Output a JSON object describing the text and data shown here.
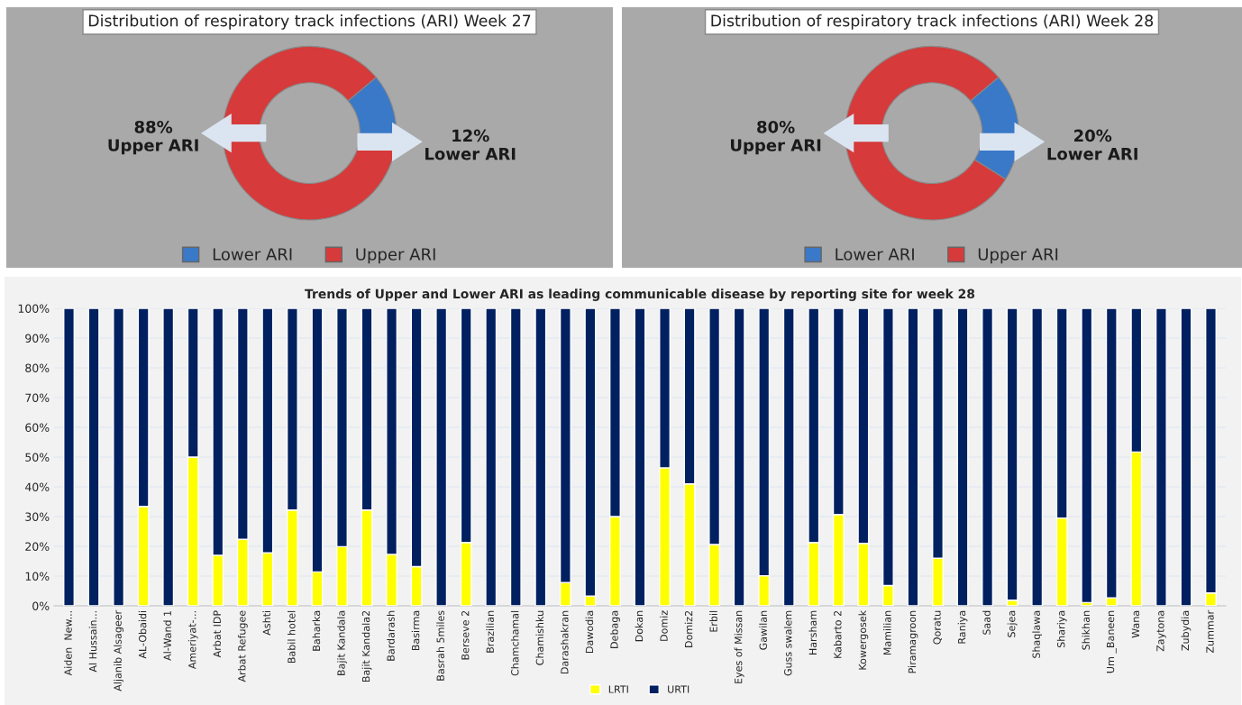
{
  "chart_data": [
    {
      "type": "donut",
      "title": "Distribution of respiratory track infections (ARI) Week 27",
      "categories": [
        "Lower ARI",
        "Upper ARI"
      ],
      "values": [
        12,
        88
      ],
      "colors": [
        "#3a78c8",
        "#d63a3a"
      ],
      "value_labels": [
        "12%",
        "88%"
      ],
      "legend": "bottom"
    },
    {
      "type": "donut",
      "title": "Distribution of respiratory track infections (ARI) Week 28",
      "categories": [
        "Lower ARI",
        "Upper ARI"
      ],
      "values": [
        20,
        80
      ],
      "colors": [
        "#3a78c8",
        "#d63a3a"
      ],
      "value_labels": [
        "20%",
        "80%"
      ],
      "legend": "bottom"
    },
    {
      "type": "bar",
      "title": "Trends of Upper and Lower ARI as leading communicable disease by reporting site for week 28",
      "stacked": true,
      "grid": "y",
      "legend": "bottom",
      "categories": [
        "Aiden  New...",
        "Al Hussain...",
        "Aljanib Alsageer",
        "AL-Obaidi",
        "Al-Wand 1",
        "Ameriyat-...",
        "Arbat IDP",
        "Arbat Refugee",
        "Ashti",
        "Babil hotel",
        "Baharka",
        "Bajit Kandala",
        "Bajit Kandala2",
        "Bardarash",
        "Basirma",
        "Basrah 5miles",
        "Berseve 2",
        "Brazilian",
        "Chamchamal",
        "Chamishku",
        "Darashakran",
        "Dawodia",
        "Debaga",
        "Dokan",
        "Domiz",
        "Domiz2",
        "Erbil",
        "Eyes of Missan",
        "Gawilan",
        "Guss swalem",
        "Harsham",
        "Kabarto 2",
        "Kowergosek",
        "Mamilian",
        "Piramagroon",
        "Qoratu",
        "Raniya",
        "Saad",
        "Sejea",
        "Shaqlawa",
        "Shariya",
        "Shikhan",
        "Um _Baneen",
        "Wana",
        "Zaytona",
        "Zubydia",
        "Zummar"
      ],
      "series": [
        {
          "name": "LRTI",
          "color": "#ffff00",
          "values": [
            0,
            0,
            0,
            33.4,
            0,
            50,
            17,
            22.4,
            17.8,
            32.2,
            11.4,
            19.9,
            32.2,
            17.3,
            13.2,
            0,
            21.3,
            0,
            0,
            0,
            7.8,
            3.3,
            30,
            0,
            46.4,
            41,
            20.6,
            0,
            10.1,
            0,
            21.3,
            30.7,
            21,
            6.8,
            0,
            16,
            0,
            0,
            1.9,
            0,
            29.5,
            1.1,
            2.7,
            51.7,
            0,
            0,
            4.3
          ]
        },
        {
          "name": "URTI",
          "color": "#002060",
          "values": [
            100,
            100,
            100,
            66.6,
            100,
            50,
            83,
            77.6,
            82.2,
            67.8,
            88.6,
            80.1,
            67.8,
            82.7,
            86.8,
            100,
            78.7,
            100,
            100,
            100,
            92.2,
            96.7,
            70,
            100,
            53.6,
            59,
            79.4,
            100,
            89.9,
            100,
            78.7,
            69.3,
            79,
            93.2,
            100,
            84,
            100,
            100,
            98.1,
            100,
            70.5,
            98.9,
            97.3,
            48.3,
            100,
            100,
            95.7
          ]
        }
      ],
      "ylim": [
        0,
        100
      ],
      "yticks": [
        {
          "value": 0,
          "label": "0%"
        },
        {
          "value": 10,
          "label": "10%"
        },
        {
          "value": 20,
          "label": "20%"
        },
        {
          "value": 30,
          "label": "30%"
        },
        {
          "value": 40,
          "label": "40%"
        },
        {
          "value": 50,
          "label": "50%"
        },
        {
          "value": 60,
          "label": "60%"
        },
        {
          "value": 70,
          "label": "70%"
        },
        {
          "value": 80,
          "label": "80%"
        },
        {
          "value": 90,
          "label": "90%"
        },
        {
          "value": 100,
          "label": "100%"
        }
      ]
    }
  ]
}
